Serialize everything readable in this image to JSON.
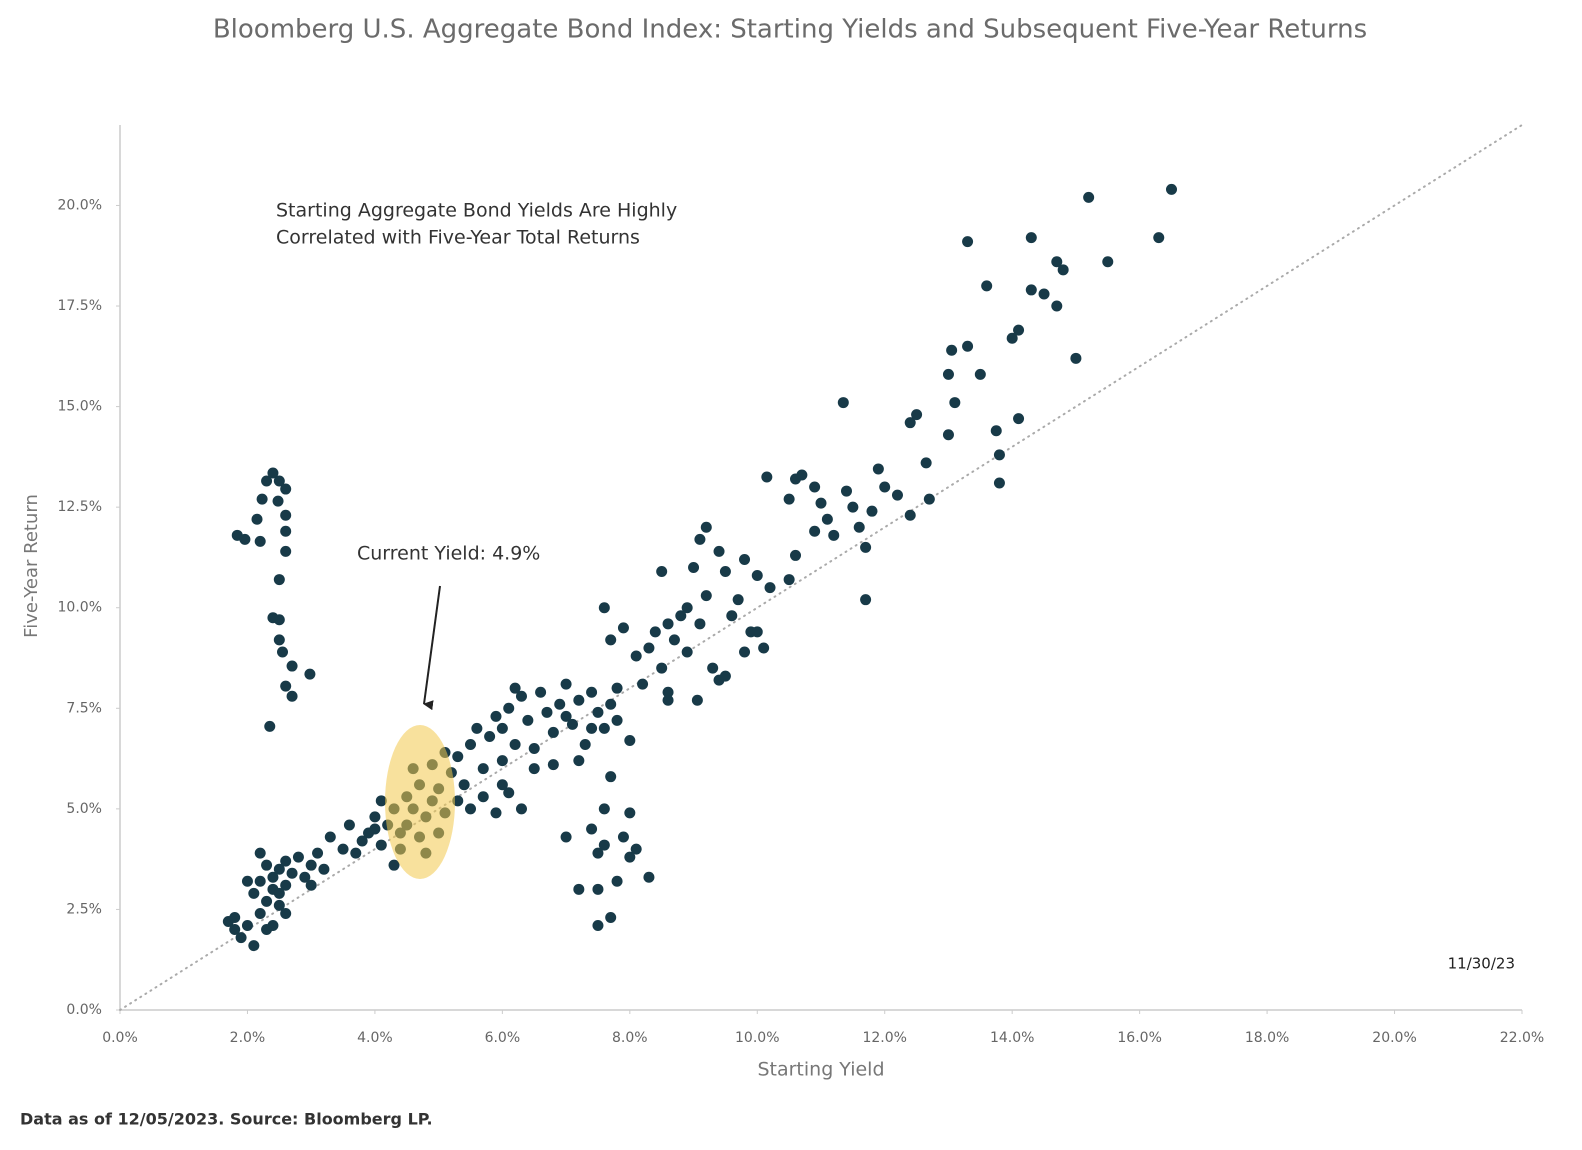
{
  "chart_data": {
    "type": "scatter",
    "title": "Bloomberg U.S. Aggregate Bond Index: Starting Yields and Subsequent Five-Year Returns",
    "x_label": "Starting Yield",
    "y_label": "Five-Year Return",
    "annotation": [
      "Starting Aggregate Bond Yields Are Highly",
      "Correlated with Five-Year Total Returns"
    ],
    "callout": "Current Yield: 4.9%",
    "date_label": "11/30/23",
    "footnote": "Data as of 12/05/2023. Source: Bloomberg LP.",
    "color": "#183a48",
    "identity_line": true,
    "xlim": [
      0,
      22
    ],
    "ylim": [
      0,
      22
    ],
    "xticks": [
      {
        "value": 0,
        "label": "0.0%"
      },
      {
        "value": 2,
        "label": "2.0%"
      },
      {
        "value": 4,
        "label": "4.0%"
      },
      {
        "value": 6,
        "label": "6.0%"
      },
      {
        "value": 8,
        "label": "8.0%"
      },
      {
        "value": 10,
        "label": "10.0%"
      },
      {
        "value": 12,
        "label": "12.0%"
      },
      {
        "value": 14,
        "label": "14.0%"
      },
      {
        "value": 16,
        "label": "16.0%"
      },
      {
        "value": 18,
        "label": "18.0%"
      },
      {
        "value": 20,
        "label": "20.0%"
      },
      {
        "value": 22,
        "label": "22.0%"
      }
    ],
    "yticks": [
      {
        "value": 0,
        "label": "0.0%"
      },
      {
        "value": 2.5,
        "label": "2.5%"
      },
      {
        "value": 5,
        "label": "5.0%"
      },
      {
        "value": 7.5,
        "label": "7.5%"
      },
      {
        "value": 10,
        "label": "10.0%"
      },
      {
        "value": 12.5,
        "label": "12.5%"
      },
      {
        "value": 15,
        "label": "15.0%"
      },
      {
        "value": 17.5,
        "label": "17.5%"
      },
      {
        "value": 20,
        "label": "20.0%"
      }
    ],
    "x": [
      1.7,
      1.8,
      1.9,
      2.0,
      2.1,
      1.8,
      2.2,
      2.3,
      2.4,
      2.2,
      2.3,
      2.4,
      2.5,
      2.6,
      2.4,
      2.5,
      2.6,
      2.2,
      2.0,
      2.7,
      2.8,
      2.9,
      3.0,
      3.1,
      3.2,
      3.0,
      2.3,
      2.5,
      2.1,
      2.6,
      3.3,
      3.5,
      3.6,
      3.8,
      3.7,
      3.9,
      4.0,
      4.1,
      4.2,
      4.3,
      4.1,
      4.4,
      4.0,
      4.3,
      4.4,
      4.5,
      4.5,
      4.6,
      4.7,
      4.8,
      4.9,
      4.9,
      5.0,
      4.6,
      4.8,
      5.0,
      5.1,
      4.7,
      5.1,
      5.3,
      5.5,
      5.6,
      5.8,
      5.9,
      6.0,
      6.1,
      6.2,
      6.3,
      6.4,
      6.5,
      6.6,
      6.7,
      6.8,
      6.9,
      7.0,
      7.1,
      7.2,
      7.3,
      7.4,
      7.5,
      7.6,
      6.8,
      6.5,
      7.0,
      6.0,
      5.7,
      5.4,
      5.5,
      5.7,
      5.9,
      6.1,
      6.3,
      6.0,
      5.3,
      7.4,
      7.7,
      7.8,
      5.2,
      6.2,
      7.2,
      7.0,
      7.2,
      7.4,
      7.5,
      7.6,
      7.5,
      7.6,
      7.7,
      7.8,
      7.7,
      7.9,
      8.0,
      8.0,
      8.1,
      8.3,
      7.5,
      8.0,
      7.8,
      7.7,
      7.6,
      7.9,
      8.1,
      8.2,
      8.4,
      8.5,
      8.6,
      8.5,
      8.8,
      8.9,
      9.0,
      9.1,
      9.2,
      9.3,
      9.4,
      9.5,
      9.6,
      9.7,
      9.8,
      9.9,
      10.0,
      10.1,
      9.2,
      9.06,
      8.7,
      8.9,
      9.5,
      9.8,
      10.2,
      10.5,
      10.6,
      10.0,
      8.6,
      8.3,
      8.6,
      9.4,
      9.1,
      10.15,
      10.6,
      10.5,
      10.7,
      10.9,
      11.0,
      11.1,
      11.2,
      11.4,
      11.5,
      11.6,
      11.9,
      12.0,
      11.8,
      11.35,
      11.7,
      10.9,
      12.2,
      11.7,
      12.4,
      12.5,
      12.65,
      12.7,
      12.4,
      13.0,
      13.0,
      13.05,
      13.1,
      13.3,
      13.3,
      13.5,
      13.6,
      14.0,
      14.1,
      14.1,
      13.75,
      13.8,
      13.8,
      14.3,
      14.3,
      14.5,
      14.7,
      14.7,
      14.8,
      15.0,
      15.2,
      16.5,
      16.3,
      15.5,
      1.84,
      1.96,
      2.15,
      2.23,
      2.3,
      2.4,
      2.5,
      2.6,
      2.6,
      2.6,
      2.6,
      2.5,
      2.4,
      2.5,
      2.5,
      2.55,
      2.7,
      2.6,
      2.7,
      2.98,
      2.35,
      2.2,
      2.48
    ],
    "values": [
      2.2,
      2.0,
      1.8,
      2.1,
      1.6,
      2.3,
      2.4,
      2.7,
      3.0,
      3.2,
      3.6,
      3.3,
      2.9,
      2.4,
      2.1,
      3.5,
      3.1,
      3.9,
      3.2,
      3.4,
      3.8,
      3.3,
      3.6,
      3.9,
      3.5,
      3.1,
      2.0,
      2.6,
      2.9,
      3.7,
      4.3,
      4.0,
      4.6,
      4.2,
      3.9,
      4.4,
      4.8,
      5.2,
      4.6,
      5.0,
      4.1,
      4.4,
      4.5,
      3.6,
      4.0,
      4.6,
      5.3,
      6.0,
      5.6,
      4.8,
      5.2,
      6.1,
      4.4,
      5.0,
      3.9,
      5.5,
      6.4,
      4.3,
      4.9,
      6.3,
      6.6,
      7.0,
      6.8,
      7.3,
      7.0,
      7.5,
      6.6,
      7.8,
      7.2,
      6.5,
      7.9,
      7.4,
      6.9,
      7.6,
      8.1,
      7.1,
      7.7,
      6.6,
      7.9,
      7.4,
      7.0,
      6.1,
      6.0,
      7.3,
      6.2,
      6.0,
      5.6,
      5.0,
      5.3,
      4.9,
      5.4,
      5.0,
      5.6,
      5.2,
      7.0,
      7.6,
      7.2,
      5.9,
      8.0,
      6.2,
      4.3,
      3.0,
      4.5,
      3.9,
      4.1,
      2.1,
      5.0,
      2.3,
      3.2,
      5.8,
      4.3,
      3.8,
      4.9,
      4.0,
      3.3,
      3.0,
      6.7,
      8.0,
      9.2,
      10.0,
      9.5,
      8.8,
      8.1,
      9.4,
      8.5,
      7.9,
      10.9,
      9.8,
      8.9,
      11.0,
      9.6,
      10.3,
      8.5,
      8.2,
      10.9,
      9.8,
      10.2,
      11.2,
      9.4,
      10.8,
      9.0,
      12.0,
      7.7,
      9.2,
      10.0,
      8.3,
      8.9,
      10.5,
      10.7,
      11.3,
      9.4,
      9.6,
      9.0,
      7.7,
      11.4,
      11.7,
      13.25,
      13.2,
      12.7,
      13.3,
      13.0,
      12.6,
      12.2,
      11.8,
      12.9,
      12.5,
      12.0,
      13.45,
      13.0,
      12.4,
      15.1,
      10.2,
      11.9,
      12.8,
      11.5,
      14.6,
      14.8,
      13.6,
      12.7,
      12.3,
      15.8,
      14.3,
      16.4,
      15.1,
      16.5,
      19.1,
      15.8,
      18.0,
      16.7,
      16.9,
      14.7,
      14.4,
      13.8,
      13.1,
      19.2,
      17.9,
      17.8,
      17.5,
      18.6,
      18.4,
      16.2,
      20.2,
      20.4,
      19.2,
      18.6,
      11.8,
      11.7,
      12.2,
      12.7,
      13.15,
      13.35,
      13.15,
      12.95,
      12.3,
      11.9,
      11.4,
      10.7,
      9.75,
      9.7,
      9.2,
      8.9,
      8.55,
      8.05,
      7.8,
      8.35,
      7.05,
      11.65,
      12.65
    ]
  }
}
